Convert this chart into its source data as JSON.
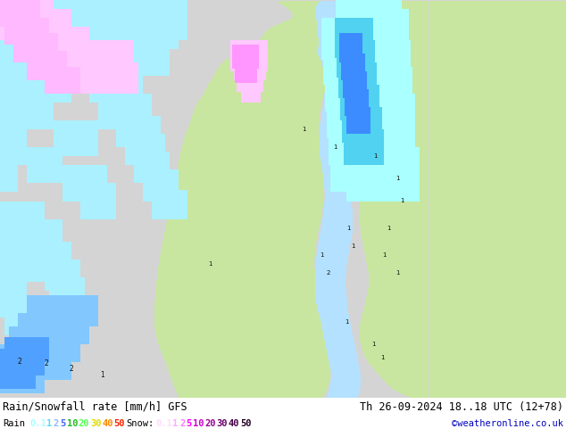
{
  "title_left": "Rain/Snowfall rate [mm/h] GFS",
  "title_right": "Th 26-09-2024 18..18 UTC (12+78)",
  "credit": "©weatheronline.co.uk",
  "fig_width": 6.34,
  "fig_height": 4.9,
  "dpi": 100,
  "background_color": "#ffffff",
  "land_color": "#c8e8a0",
  "ocean_color": "#d4d4d4",
  "sea_color": "#aaddff",
  "title_font_size": 8.5,
  "legend_font_size": 7.5,
  "text_color": "#000000",
  "rain_legend": [
    {
      "val": "0.1",
      "color": "#aaffff"
    },
    {
      "val": "1",
      "color": "#55ddee"
    },
    {
      "val": "2",
      "color": "#88bbff"
    },
    {
      "val": "5",
      "color": "#4466ff"
    },
    {
      "val": "10",
      "color": "#22bb22"
    },
    {
      "val": "20",
      "color": "#55ff55"
    },
    {
      "val": "30",
      "color": "#dddd00"
    },
    {
      "val": "40",
      "color": "#ff8800"
    },
    {
      "val": "50",
      "color": "#ff2200"
    }
  ],
  "snow_legend": [
    {
      "val": "0.1",
      "color": "#ffddff"
    },
    {
      "val": "1",
      "color": "#ffaaff"
    },
    {
      "val": "2",
      "color": "#ff77ff"
    },
    {
      "val": "5",
      "color": "#ff00ff"
    },
    {
      "val": "10",
      "color": "#cc00cc"
    },
    {
      "val": "20",
      "color": "#990099"
    },
    {
      "val": "30",
      "color": "#660066"
    },
    {
      "val": "40",
      "color": "#440044"
    },
    {
      "val": "50",
      "color": "#220022"
    }
  ],
  "map_colors": {
    "no_precip": [
      212,
      212,
      212
    ],
    "rain_01": [
      170,
      255,
      255
    ],
    "rain_1": [
      80,
      210,
      240
    ],
    "rain_2": [
      80,
      170,
      255
    ],
    "rain_5": [
      60,
      100,
      255
    ],
    "rain_10": [
      0,
      190,
      0
    ],
    "rain_20": [
      0,
      255,
      0
    ],
    "rain_30": [
      220,
      220,
      0
    ],
    "rain_40": [
      255,
      140,
      0
    ],
    "rain_50": [
      255,
      30,
      0
    ],
    "snow_01": [
      255,
      200,
      255
    ],
    "snow_1": [
      255,
      150,
      255
    ],
    "snow_2": [
      255,
      100,
      255
    ],
    "snow_5": [
      255,
      0,
      255
    ],
    "snow_10": [
      200,
      0,
      200
    ],
    "land": [
      200,
      230,
      160
    ],
    "ocean": [
      212,
      212,
      212
    ],
    "sea": [
      170,
      221,
      255
    ]
  }
}
